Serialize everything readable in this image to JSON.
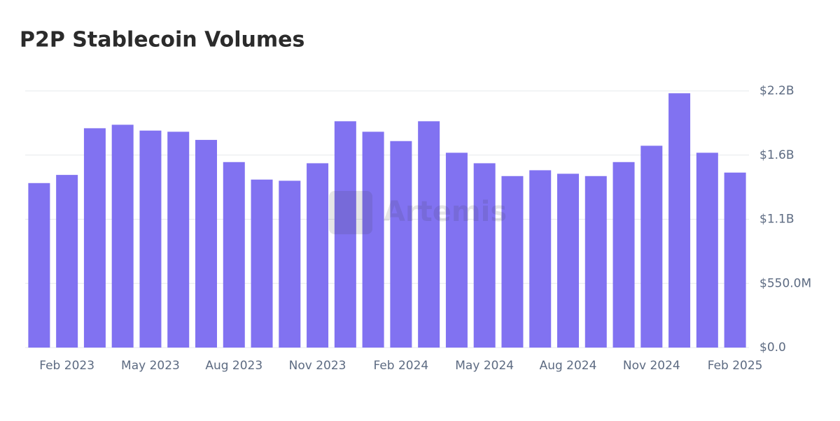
{
  "chart_data": {
    "type": "bar",
    "title": "P2P Stablecoin Volumes",
    "watermark": "Artemis",
    "categories": [
      null,
      "Feb 2023",
      null,
      null,
      "May 2023",
      null,
      null,
      "Aug 2023",
      null,
      null,
      "Nov 2023",
      null,
      null,
      "Feb 2024",
      null,
      null,
      "May 2024",
      null,
      null,
      "Aug 2024",
      null,
      null,
      "Nov 2024",
      null,
      null,
      "Feb 2025"
    ],
    "values": [
      1410000000,
      1480000000,
      1880000000,
      1910000000,
      1860000000,
      1850000000,
      1780000000,
      1590000000,
      1440000000,
      1430000000,
      1580000000,
      1940000000,
      1850000000,
      1770000000,
      1940000000,
      1670000000,
      1580000000,
      1470000000,
      1520000000,
      1490000000,
      1470000000,
      1590000000,
      1730000000,
      2180000000,
      1670000000,
      1500000000
    ],
    "color": "#8172f1",
    "ylim": [
      0,
      2200000000
    ],
    "yticks": [
      {
        "value": 0,
        "label": "$0.0"
      },
      {
        "value": 550000000,
        "label": "$550.0M"
      },
      {
        "value": 1100000000,
        "label": "$1.1B"
      },
      {
        "value": 1650000000,
        "label": "$1.6B"
      },
      {
        "value": 2200000000,
        "label": "$2.2B"
      }
    ],
    "grid": true
  }
}
